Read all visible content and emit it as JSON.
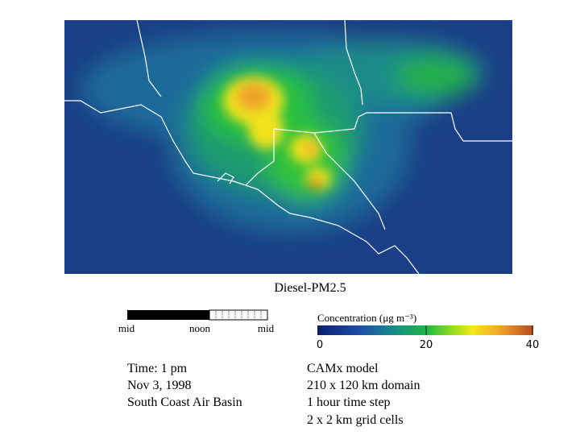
{
  "map": {
    "title": "Diesel-PM2.5"
  },
  "time_bar": {
    "labels": [
      "mid",
      "noon",
      "mid"
    ]
  },
  "colorbar": {
    "label": "Concentration (μg m⁻³)",
    "lim": [
      0,
      40
    ],
    "ticks": [
      0,
      20,
      40
    ]
  },
  "info_left": [
    "Time: 1 pm",
    "Nov 3, 1998",
    "South Coast Air Basin"
  ],
  "info_right": [
    "CAMx model",
    "210 x 120 km domain",
    "1 hour time step",
    "2 x 2 km grid cells"
  ]
}
